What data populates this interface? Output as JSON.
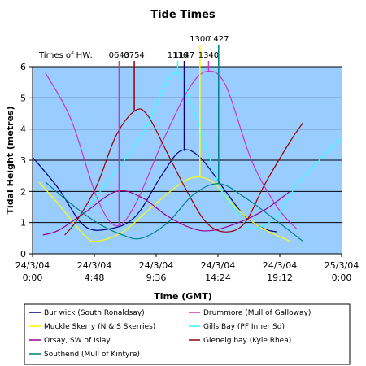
{
  "chart_data": {
    "type": "line",
    "title": "Tide Times",
    "xlabel": "Time (GMT)",
    "ylabel": "Tidal Height (metres)",
    "ylim": [
      0,
      6
    ],
    "yticks": [
      0,
      1,
      2,
      3,
      4,
      5,
      6
    ],
    "xlim_hours": [
      0,
      24
    ],
    "xticks": [
      {
        "hours": 0,
        "date": "24/3/04",
        "time": "0:00"
      },
      {
        "hours": 4.8,
        "date": "24/3/04",
        "time": "4:48"
      },
      {
        "hours": 9.6,
        "date": "24/3/04",
        "time": "9:36"
      },
      {
        "hours": 14.4,
        "date": "24/3/04",
        "time": "14:24"
      },
      {
        "hours": 19.2,
        "date": "24/3/04",
        "time": "19:12"
      },
      {
        "hours": 24,
        "date": "25/3/04",
        "time": "0:00"
      }
    ],
    "grid": "horizontal",
    "background": "#99ccff",
    "legend_placement": "bottom",
    "hw_caption": "Times of HW:",
    "hw_markers": [
      {
        "label": "0643",
        "hours": 6.72,
        "color": "#cc33cc"
      },
      {
        "label": "0754",
        "hours": 7.9,
        "color": "#990000"
      },
      {
        "label": "1116",
        "hours": 11.27,
        "color": "#33ffff"
      },
      {
        "label": "1147",
        "hours": 11.78,
        "color": "#000080"
      },
      {
        "label": "1300",
        "hours": 13.0,
        "color": "#ffff00"
      },
      {
        "label": "1340",
        "hours": 13.67,
        "color": "#cc33cc"
      },
      {
        "label": "1427",
        "hours": 14.45,
        "color": "#008080"
      }
    ],
    "series": [
      {
        "name": "Bur wick (South Ronaldsay)",
        "color": "#000080",
        "points": [
          [
            0,
            3.1
          ],
          [
            2,
            2.1
          ],
          [
            4,
            0.9
          ],
          [
            6,
            0.8
          ],
          [
            8,
            1.2
          ],
          [
            10,
            2.5
          ],
          [
            11.5,
            3.3
          ],
          [
            13,
            3.1
          ],
          [
            15,
            2.0
          ],
          [
            16.5,
            1.2
          ],
          [
            18,
            0.8
          ],
          [
            19,
            0.7
          ]
        ]
      },
      {
        "name": "Drummore (Mull of Galloway)",
        "color": "#cc33cc",
        "points": [
          [
            1,
            5.8
          ],
          [
            3,
            4.3
          ],
          [
            5,
            1.8
          ],
          [
            6.5,
            0.9
          ],
          [
            8,
            1.6
          ],
          [
            10,
            3.5
          ],
          [
            12,
            5.2
          ],
          [
            13.5,
            5.85
          ],
          [
            15,
            5.4
          ],
          [
            17,
            3.0
          ],
          [
            19,
            1.5
          ],
          [
            20.5,
            0.8
          ]
        ]
      },
      {
        "name": "Muckle Skerry (N & S Skerries)",
        "color": "#ffff00",
        "points": [
          [
            0.5,
            2.3
          ],
          [
            2,
            1.6
          ],
          [
            4,
            0.6
          ],
          [
            5,
            0.4
          ],
          [
            7,
            0.7
          ],
          [
            9,
            1.4
          ],
          [
            11,
            2.1
          ],
          [
            12.5,
            2.45
          ],
          [
            14,
            2.3
          ],
          [
            15.5,
            1.6
          ],
          [
            17.5,
            0.9
          ],
          [
            20,
            0.4
          ]
        ]
      },
      {
        "name": "Gills Bay (PF Inner Sd)",
        "color": "#33ffff",
        "points": [
          [
            3,
            0.8
          ],
          [
            6,
            2.4
          ],
          [
            8.5,
            3.8
          ],
          [
            11,
            5.8
          ],
          [
            12.5,
            4.6
          ],
          [
            14.5,
            2.2
          ],
          [
            16,
            1.3
          ],
          [
            17,
            0.8
          ],
          [
            19,
            1.2
          ],
          [
            20.5,
            2.2
          ],
          [
            22.5,
            3.1
          ],
          [
            24,
            3.7
          ]
        ]
      },
      {
        "name": "Orsay, SW of Islay",
        "color": "#990099",
        "points": [
          [
            0.8,
            0.6
          ],
          [
            2,
            0.75
          ],
          [
            4,
            1.3
          ],
          [
            6.5,
            2.0
          ],
          [
            8.5,
            1.8
          ],
          [
            10.5,
            1.2
          ],
          [
            12.5,
            0.8
          ],
          [
            14,
            0.75
          ],
          [
            16,
            1.0
          ],
          [
            18,
            1.4
          ],
          [
            20,
            2.0
          ]
        ]
      },
      {
        "name": "Glenelg bay (Kyle Rhea)",
        "color": "#990000",
        "points": [
          [
            2.5,
            0.6
          ],
          [
            3.5,
            1.1
          ],
          [
            5,
            2.2
          ],
          [
            6.5,
            3.8
          ],
          [
            8,
            4.6
          ],
          [
            9,
            4.4
          ],
          [
            10.5,
            3.2
          ],
          [
            12,
            2.0
          ],
          [
            13.5,
            1.0
          ],
          [
            15,
            0.7
          ],
          [
            16.5,
            1.0
          ],
          [
            18,
            2.2
          ],
          [
            20,
            3.6
          ],
          [
            21,
            4.2
          ]
        ]
      },
      {
        "name": "Southend (Mull of Kintyre)",
        "color": "#008080",
        "points": [
          [
            1,
            2.3
          ],
          [
            3,
            1.6
          ],
          [
            5,
            1.0
          ],
          [
            7,
            0.6
          ],
          [
            8.5,
            0.5
          ],
          [
            10.5,
            1.0
          ],
          [
            12.5,
            1.9
          ],
          [
            14.5,
            2.25
          ],
          [
            16.5,
            1.8
          ],
          [
            18.5,
            1.2
          ],
          [
            21,
            0.4
          ]
        ]
      }
    ]
  }
}
